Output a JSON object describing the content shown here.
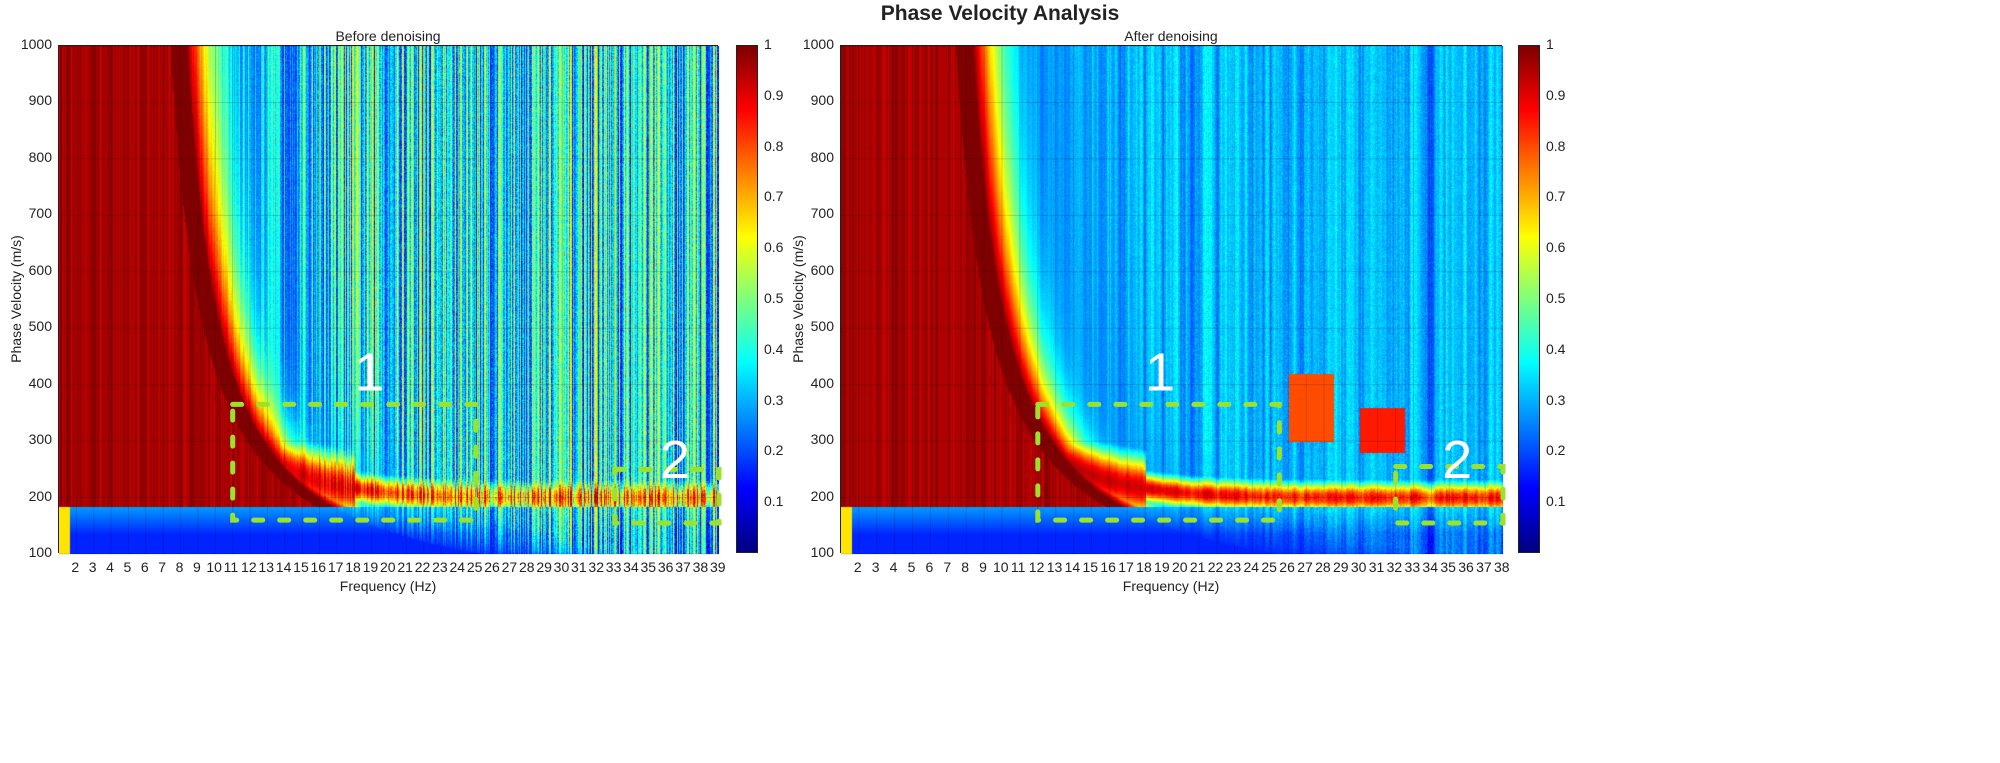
{
  "title": "Phase Velocity Analysis",
  "chart_data": [
    {
      "type": "heatmap",
      "title": "Before denoising",
      "xlabel": "Frequency (Hz)",
      "ylabel": "Phase Velocity (m/s)",
      "xlim": [
        1,
        39
      ],
      "ylim": [
        100,
        1000
      ],
      "xticks": [
        2,
        3,
        4,
        5,
        6,
        7,
        8,
        9,
        10,
        11,
        12,
        13,
        14,
        15,
        16,
        17,
        18,
        19,
        20,
        21,
        22,
        23,
        24,
        25,
        26,
        27,
        28,
        29,
        30,
        31,
        32,
        33,
        34,
        35,
        36,
        37,
        38,
        39
      ],
      "yticks": [
        100,
        200,
        300,
        400,
        500,
        600,
        700,
        800,
        900,
        1000
      ],
      "grid": true,
      "colormap": "jet",
      "colorbar": {
        "range": [
          0,
          1
        ],
        "ticks": [
          "0.1",
          "0.2",
          "0.3",
          "0.4",
          "0.5",
          "0.6",
          "0.7",
          "0.8",
          "0.9",
          "1"
        ]
      },
      "noise_level": "high",
      "dispersion_ridge": [
        [
          5,
          950
        ],
        [
          8,
          620
        ],
        [
          10,
          450
        ],
        [
          12,
          330
        ],
        [
          15,
          270
        ],
        [
          18,
          230
        ],
        [
          20,
          210
        ],
        [
          25,
          200
        ],
        [
          30,
          200
        ],
        [
          35,
          200
        ],
        [
          39,
          200
        ]
      ],
      "annotations": [
        {
          "label": "1",
          "box": {
            "x": [
              11,
              25
            ],
            "y": [
              160,
              365
            ]
          },
          "label_at": [
            18,
            390
          ],
          "color": "#9be22a"
        },
        {
          "label": "2",
          "box": {
            "x": [
              33,
              39
            ],
            "y": [
              155,
              250
            ]
          },
          "label_at": [
            35.6,
            235
          ],
          "color": "#9be22a"
        }
      ]
    },
    {
      "type": "heatmap",
      "title": "After denoising",
      "xlabel": "Frequency (Hz)",
      "ylabel": "Phase Velocity (m/s)",
      "xlim": [
        1,
        38
      ],
      "ylim": [
        100,
        1000
      ],
      "xticks": [
        2,
        3,
        4,
        5,
        6,
        7,
        8,
        9,
        10,
        11,
        12,
        13,
        14,
        15,
        16,
        17,
        18,
        19,
        20,
        21,
        22,
        23,
        24,
        25,
        26,
        27,
        28,
        29,
        30,
        31,
        32,
        33,
        34,
        35,
        36,
        37,
        38
      ],
      "yticks": [
        100,
        200,
        300,
        400,
        500,
        600,
        700,
        800,
        900,
        1000
      ],
      "grid": true,
      "colormap": "jet",
      "colorbar": {
        "range": [
          0,
          1
        ],
        "ticks": [
          "0.1",
          "0.2",
          "0.3",
          "0.4",
          "0.5",
          "0.6",
          "0.7",
          "0.8",
          "0.9",
          "1"
        ]
      },
      "noise_level": "low",
      "dispersion_ridge": [
        [
          5,
          950
        ],
        [
          8,
          620
        ],
        [
          10,
          450
        ],
        [
          12,
          330
        ],
        [
          15,
          280
        ],
        [
          18,
          240
        ],
        [
          20,
          210
        ],
        [
          25,
          200
        ],
        [
          30,
          205
        ],
        [
          35,
          205
        ],
        [
          38,
          210
        ]
      ],
      "annotations": [
        {
          "label": "1",
          "box": {
            "x": [
              12,
              25.5
            ],
            "y": [
              160,
              365
            ]
          },
          "label_at": [
            18,
            390
          ],
          "color": "#9be22a"
        },
        {
          "label": "2",
          "box": {
            "x": [
              32,
              38
            ],
            "y": [
              155,
              255
            ]
          },
          "label_at": [
            34.6,
            235
          ],
          "color": "#9be22a"
        }
      ]
    }
  ]
}
